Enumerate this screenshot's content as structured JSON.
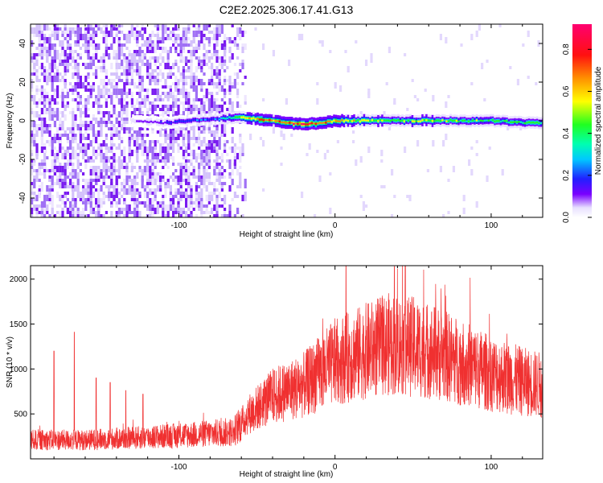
{
  "title": "C2E2.2025.306.17.41.G13",
  "colors": {
    "snr_line": "#f03030",
    "zero_line": "#40c040",
    "background": "#ffffff"
  },
  "chart_data": [
    {
      "type": "heatmap",
      "title": "C2E2.2025.306.17.41.G13",
      "xlabel": "Height of straight line (km)",
      "ylabel": "Frequency (Hz)",
      "xlim": [
        -195,
        133
      ],
      "ylim": [
        -50,
        50
      ],
      "xticks": [
        -100,
        0,
        100
      ],
      "xtick_labels": [
        "-100",
        "0",
        "100"
      ],
      "yticks": [
        -40,
        -20,
        0,
        20,
        40
      ],
      "ytick_labels": [
        "-40",
        "-20",
        "0",
        "20",
        "40"
      ],
      "colorbar": {
        "label": "Normalized spectral amplitude",
        "range": [
          0,
          0.92
        ],
        "ticks": [
          0.0,
          0.2,
          0.4,
          0.6,
          0.8
        ],
        "tick_labels": [
          "0.0",
          "0.2",
          "0.4",
          "0.6",
          "0.8"
        ]
      },
      "noise_region_x": [
        -195,
        -58
      ],
      "signal_band": {
        "x": [
          -130,
          -110,
          -95,
          -75,
          -60,
          -50,
          -40,
          -30,
          -20,
          -10,
          0,
          20,
          40,
          60,
          80,
          100,
          120,
          133
        ],
        "freq_center": [
          0,
          -1,
          0,
          1,
          2,
          1,
          0,
          -1,
          -2,
          -1,
          0,
          0,
          0,
          0,
          0,
          0,
          -1,
          -1
        ],
        "amplitude": [
          0.12,
          0.2,
          0.25,
          0.3,
          0.6,
          0.85,
          0.75,
          0.85,
          0.9,
          0.8,
          0.7,
          0.6,
          0.55,
          0.6,
          0.55,
          0.5,
          0.5,
          0.45
        ]
      }
    },
    {
      "type": "line",
      "xlabel": "Height of straight line (km)",
      "ylabel": "SNR (10 * v/v)",
      "xlim": [
        -195,
        133
      ],
      "ylim": [
        0,
        2150
      ],
      "xticks": [
        -100,
        0,
        100
      ],
      "xtick_labels": [
        "-100",
        "0",
        "100"
      ],
      "yticks": [
        500,
        1000,
        1500,
        2000
      ],
      "ytick_labels": [
        "500",
        "1000",
        "1500",
        "2000"
      ],
      "series": [
        {
          "name": "SNR",
          "envelope_x": [
            -195,
            -160,
            -120,
            -90,
            -65,
            -55,
            -40,
            -20,
            0,
            20,
            35,
            50,
            65,
            80,
            100,
            120,
            133
          ],
          "envelope_mean": [
            210,
            210,
            240,
            270,
            300,
            500,
            700,
            820,
            1080,
            1200,
            1280,
            1250,
            1180,
            1080,
            950,
            860,
            820
          ],
          "spikes": [
            {
              "x": -180,
              "y": 1200
            },
            {
              "x": -167,
              "y": 1410
            },
            {
              "x": -153,
              "y": 900
            },
            {
              "x": -144,
              "y": 850
            },
            {
              "x": -134,
              "y": 760
            },
            {
              "x": -123,
              "y": 720
            },
            {
              "x": 7,
              "y": 2150
            },
            {
              "x": 38,
              "y": 2140
            },
            {
              "x": 45,
              "y": 2150
            }
          ]
        }
      ]
    }
  ]
}
